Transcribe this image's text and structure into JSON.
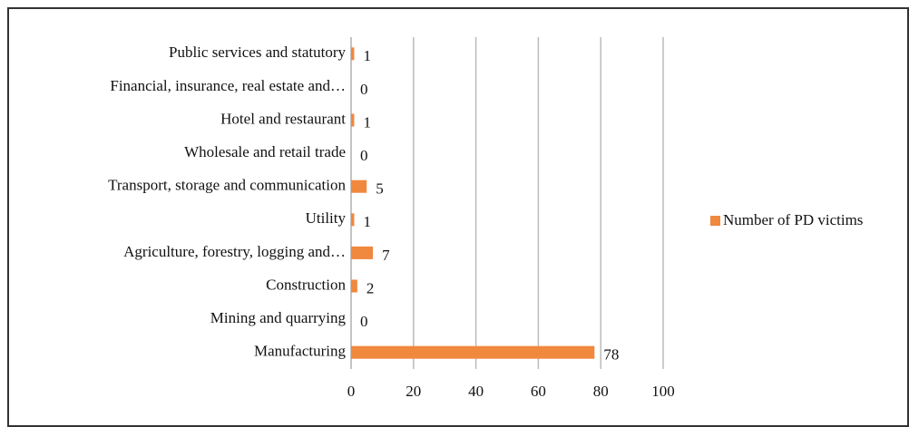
{
  "chart_data": {
    "type": "bar",
    "orientation": "horizontal",
    "categories": [
      "Public services and statutory",
      "Financial, insurance, real estate and…",
      "Hotel and restaurant",
      "Wholesale and retail trade",
      "Transport, storage and communication",
      "Utility",
      "Agriculture, forestry, logging and…",
      "Construction",
      "Mining and quarrying",
      "Manufacturing"
    ],
    "series": [
      {
        "name": "Number of PD victims",
        "color": "#f0883e",
        "values": [
          1,
          0,
          1,
          0,
          5,
          1,
          7,
          2,
          0,
          78
        ]
      }
    ],
    "xlim": [
      0,
      100
    ],
    "xticks": [
      0,
      20,
      40,
      60,
      80,
      100
    ],
    "grid": true,
    "legend": "right"
  }
}
